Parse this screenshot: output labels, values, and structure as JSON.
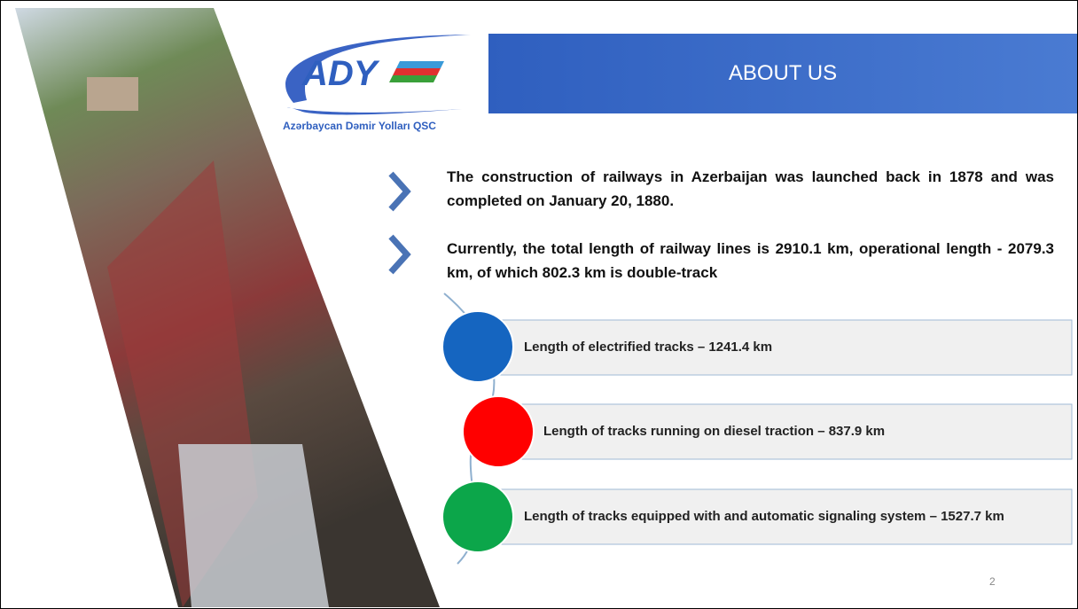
{
  "logo": {
    "mark": "ADY",
    "name": "Azərbaycan Dəmir Yolları QSC"
  },
  "header": {
    "title": "ABOUT US"
  },
  "bullets": [
    "The construction of railways in Azerbaijan was launched back in 1878 and was completed on January 20, 1880.",
    "Currently, the total length of railway lines is 2910.1 km, operational length - 2079.3 km, of which 802.3 km is double-track"
  ],
  "items": [
    "Length of electrified tracks – 1241.4 km",
    "Length of tracks running on diesel traction – 837.9 km",
    "Length of tracks equipped with and automatic signaling system – 1527.7 km"
  ],
  "page_number": "2"
}
